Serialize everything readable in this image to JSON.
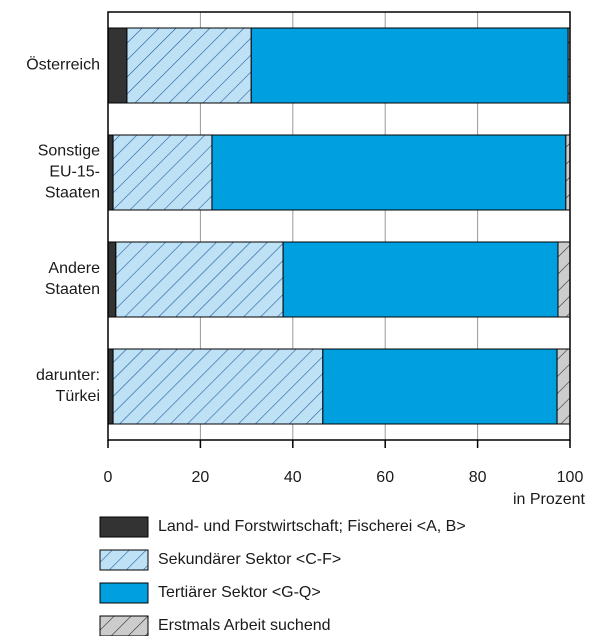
{
  "chart_data": {
    "type": "stacked-barh",
    "categories": [
      "Österreich",
      "Sonstige\nEU-15-\nStaaten",
      "Andere\nStaaten",
      "darunter:\nTürkei"
    ],
    "series": [
      {
        "name": "Land- und Forstwirtschaft; Fischerei <A, B>",
        "color": "#333333",
        "values": [
          4.1,
          1.1,
          1.7,
          1.1
        ]
      },
      {
        "name": "Sekundärer Sektor <C-F>",
        "color": "#bfe1f6",
        "hatch": true,
        "values": [
          26.9,
          21.4,
          36.2,
          45.4
        ]
      },
      {
        "name": "Tertiärer Sektor <G-Q>",
        "color": "#009fe0",
        "values": [
          68.6,
          76.6,
          59.5,
          50.7
        ]
      },
      {
        "name": "Erstmals Arbeit suchend",
        "color": "#cccccc",
        "hatch": true,
        "values": [
          0.4,
          0.9,
          2.6,
          2.8
        ]
      }
    ],
    "xlim": [
      0,
      100
    ],
    "xticks": [
      0,
      20,
      40,
      60,
      80,
      100
    ],
    "xlabel": "in Prozent",
    "grid": true
  }
}
